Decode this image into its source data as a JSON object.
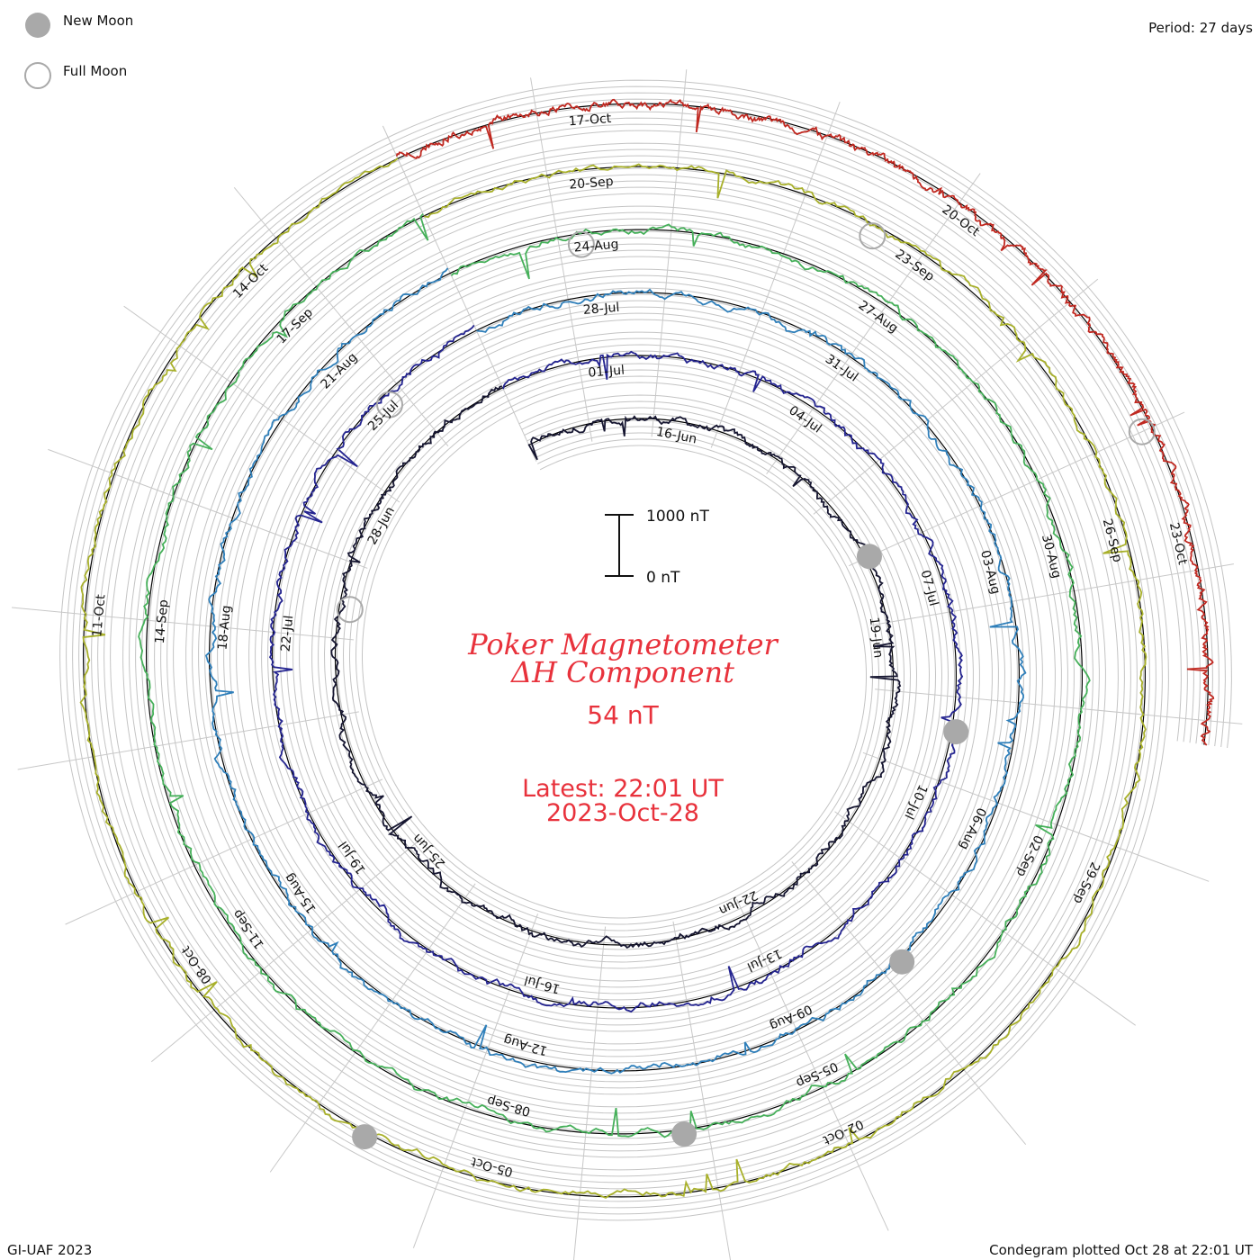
{
  "legend": {
    "new_moon_label": "New Moon",
    "full_moon_label": "Full Moon"
  },
  "period_label": "Period: 27 days",
  "footer_left": "GI-UAF 2023",
  "footer_right": "Condegram plotted Oct 28 at 22:01 UT",
  "title_line1": "Poker Magnetometer",
  "title_line2": "ΔH Component",
  "current_value": "54 nT",
  "latest_line1": "Latest: 22:01 UT",
  "latest_line2": "2023-Oct-28",
  "scale_bar": {
    "top_label": "1000 nT",
    "bottom_label": "0 nT",
    "top_value_nT": 1000,
    "bottom_value_nT": 0
  },
  "chart_data": {
    "type": "line",
    "layout": "spiral-condegram",
    "period_days": 27,
    "revolutions": [
      {
        "color": "#151530",
        "date_labels": [
          "16-Jun",
          "19-Jun",
          "22-Jun",
          "25-Jun",
          "28-Jun"
        ]
      },
      {
        "color": "#242490",
        "date_labels": [
          "01-Jul",
          "04-Jul",
          "07-Jul",
          "10-Jul",
          "13-Jul",
          "16-Jul",
          "19-Jul",
          "22-Jul",
          "25-Jul"
        ]
      },
      {
        "color": "#2f7fba",
        "date_labels": [
          "28-Jul",
          "31-Jul",
          "03-Aug",
          "06-Aug",
          "09-Aug",
          "12-Aug",
          "15-Aug",
          "18-Aug",
          "21-Aug"
        ]
      },
      {
        "color": "#46b05a",
        "date_labels": [
          "24-Aug",
          "27-Aug",
          "30-Aug",
          "02-Sep",
          "05-Sep",
          "08-Sep",
          "11-Sep",
          "14-Sep",
          "17-Sep"
        ]
      },
      {
        "color": "#a8b02a",
        "date_labels": [
          "20-Sep",
          "23-Sep",
          "26-Sep",
          "29-Sep",
          "02-Oct",
          "05-Oct",
          "08-Oct",
          "11-Oct",
          "14-Oct"
        ]
      },
      {
        "color": "#c02820",
        "date_labels": [
          "17-Oct",
          "20-Oct",
          "23-Oct"
        ]
      }
    ],
    "new_moons": [
      "2023-Jun-18",
      "2023-Jul-17",
      "2023-Aug-16",
      "2023-Sep-15",
      "2023-Oct-14"
    ],
    "full_moons": [
      "2023-Jul-03",
      "2023-Aug-01",
      "2023-Aug-30",
      "2023-Sep-29",
      "2023-Oct-28"
    ],
    "last_value_nT": 54,
    "latest_time": "2023-Oct-28 22:01 UT"
  }
}
